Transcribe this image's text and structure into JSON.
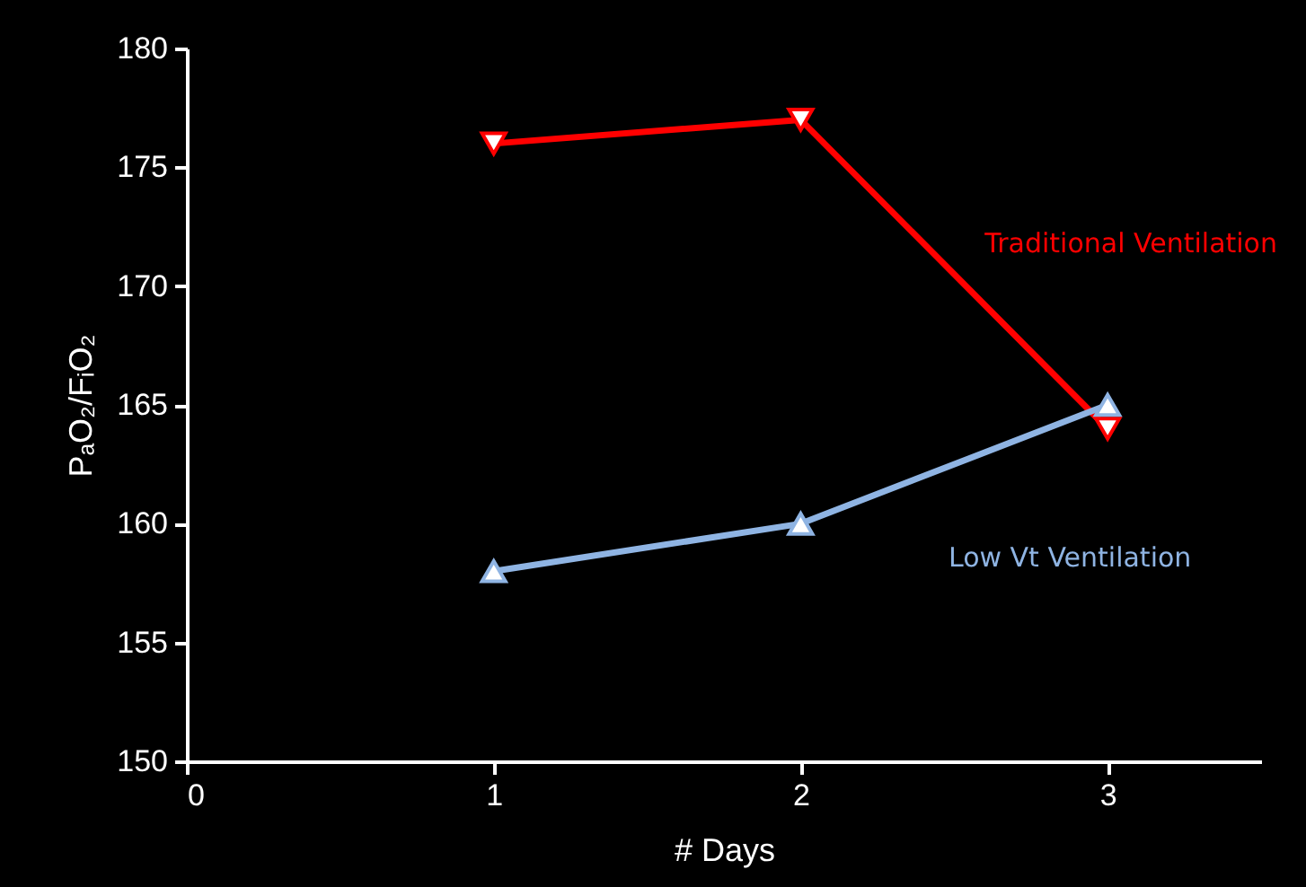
{
  "chart_data": {
    "type": "line",
    "xlabel": "# Days",
    "ylabel": "PₐO₂/FᵢO₂",
    "x": [
      1,
      2,
      3
    ],
    "series": [
      {
        "name": "Traditional Ventilation",
        "color": "#ff0000",
        "marker": "triangle-down",
        "values": [
          176,
          177,
          164
        ]
      },
      {
        "name": "Low Vt Ventilation",
        "color": "#8fb4e3",
        "marker": "triangle",
        "values": [
          158,
          160,
          165
        ]
      }
    ],
    "xlim": [
      0,
      3.5
    ],
    "xticks": [
      0,
      1,
      2,
      3
    ],
    "ylim": [
      150,
      180
    ],
    "yticks": [
      150,
      155,
      160,
      165,
      170,
      175,
      180
    ],
    "grid": false
  }
}
